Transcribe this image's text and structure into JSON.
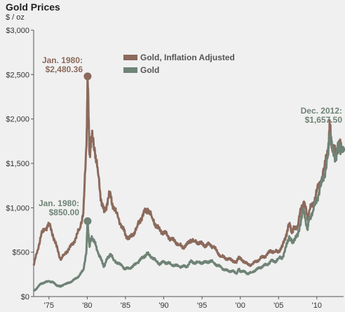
{
  "chart_data": {
    "type": "line",
    "title": "Gold Prices",
    "ylabel": "$ / oz",
    "xlim": [
      1973,
      2013.5
    ],
    "ylim": [
      0,
      3000
    ],
    "yticks": [
      0,
      500,
      1000,
      1500,
      2000,
      2500,
      3000
    ],
    "ytick_labels": [
      "$0",
      "$500",
      "$1,000",
      "$1,500",
      "$2,000",
      "$2,500",
      "$3,000"
    ],
    "xticks": [
      1975,
      1980,
      1985,
      1990,
      1995,
      2000,
      2005,
      2010
    ],
    "xtick_labels": [
      "'75",
      "'80",
      "'85",
      "'90",
      "'95",
      "'00",
      "'05",
      "'10"
    ],
    "legend_position": "top-center",
    "series": [
      {
        "name": "Gold, Inflation Adjusted",
        "color": "#8b6a5c",
        "points": [
          [
            1973.0,
            350
          ],
          [
            1973.5,
            520
          ],
          [
            1974.0,
            700
          ],
          [
            1974.5,
            760
          ],
          [
            1975.0,
            820
          ],
          [
            1975.5,
            700
          ],
          [
            1976.0,
            560
          ],
          [
            1976.5,
            420
          ],
          [
            1977.0,
            470
          ],
          [
            1977.5,
            530
          ],
          [
            1978.0,
            580
          ],
          [
            1978.5,
            660
          ],
          [
            1979.0,
            760
          ],
          [
            1979.5,
            950
          ],
          [
            1979.9,
            1700
          ],
          [
            1980.05,
            2480
          ],
          [
            1980.3,
            1600
          ],
          [
            1980.6,
            1800
          ],
          [
            1981.0,
            1650
          ],
          [
            1981.4,
            1400
          ],
          [
            1981.8,
            1100
          ],
          [
            1982.2,
            950
          ],
          [
            1982.6,
            1050
          ],
          [
            1983.0,
            1180
          ],
          [
            1983.4,
            1000
          ],
          [
            1984.0,
            900
          ],
          [
            1984.6,
            780
          ],
          [
            1985.0,
            700
          ],
          [
            1985.5,
            650
          ],
          [
            1986.0,
            700
          ],
          [
            1986.5,
            780
          ],
          [
            1987.0,
            880
          ],
          [
            1987.5,
            950
          ],
          [
            1987.9,
            990
          ],
          [
            1988.5,
            880
          ],
          [
            1989.0,
            800
          ],
          [
            1989.5,
            740
          ],
          [
            1990.0,
            730
          ],
          [
            1990.5,
            690
          ],
          [
            1991.0,
            640
          ],
          [
            1991.5,
            620
          ],
          [
            1992.0,
            580
          ],
          [
            1992.5,
            560
          ],
          [
            1993.0,
            580
          ],
          [
            1993.5,
            640
          ],
          [
            1994.0,
            620
          ],
          [
            1994.5,
            610
          ],
          [
            1995.0,
            590
          ],
          [
            1995.5,
            580
          ],
          [
            1996.0,
            590
          ],
          [
            1996.5,
            560
          ],
          [
            1997.0,
            500
          ],
          [
            1997.5,
            450
          ],
          [
            1998.0,
            440
          ],
          [
            1998.5,
            420
          ],
          [
            1999.0,
            410
          ],
          [
            1999.5,
            380
          ],
          [
            1999.8,
            450
          ],
          [
            2000.0,
            420
          ],
          [
            2000.5,
            400
          ],
          [
            2001.0,
            360
          ],
          [
            2001.5,
            360
          ],
          [
            2002.0,
            390
          ],
          [
            2002.5,
            420
          ],
          [
            2003.0,
            450
          ],
          [
            2003.5,
            470
          ],
          [
            2004.0,
            520
          ],
          [
            2004.5,
            500
          ],
          [
            2005.0,
            510
          ],
          [
            2005.5,
            560
          ],
          [
            2006.0,
            700
          ],
          [
            2006.4,
            820
          ],
          [
            2006.8,
            720
          ],
          [
            2007.0,
            760
          ],
          [
            2007.5,
            800
          ],
          [
            2008.0,
            1000
          ],
          [
            2008.3,
            1070
          ],
          [
            2008.8,
            880
          ],
          [
            2009.0,
            960
          ],
          [
            2009.5,
            1040
          ],
          [
            2010.0,
            1180
          ],
          [
            2010.5,
            1300
          ],
          [
            2011.0,
            1450
          ],
          [
            2011.5,
            1700
          ],
          [
            2011.7,
            1920
          ],
          [
            2012.0,
            1700
          ],
          [
            2012.5,
            1600
          ],
          [
            2012.9,
            1750
          ],
          [
            2013.2,
            1657.5
          ]
        ]
      },
      {
        "name": "Gold",
        "color": "#6f8376",
        "points": [
          [
            1973.0,
            65
          ],
          [
            1973.5,
            100
          ],
          [
            1974.0,
            150
          ],
          [
            1974.5,
            160
          ],
          [
            1975.0,
            175
          ],
          [
            1975.5,
            160
          ],
          [
            1976.0,
            130
          ],
          [
            1976.5,
            110
          ],
          [
            1977.0,
            140
          ],
          [
            1977.5,
            150
          ],
          [
            1978.0,
            175
          ],
          [
            1978.5,
            200
          ],
          [
            1979.0,
            240
          ],
          [
            1979.5,
            300
          ],
          [
            1979.9,
            520
          ],
          [
            1980.05,
            850
          ],
          [
            1980.3,
            560
          ],
          [
            1980.6,
            680
          ],
          [
            1981.0,
            600
          ],
          [
            1981.4,
            500
          ],
          [
            1981.8,
            420
          ],
          [
            1982.2,
            340
          ],
          [
            1982.6,
            420
          ],
          [
            1983.0,
            480
          ],
          [
            1983.4,
            420
          ],
          [
            1984.0,
            380
          ],
          [
            1984.6,
            340
          ],
          [
            1985.0,
            310
          ],
          [
            1985.5,
            320
          ],
          [
            1986.0,
            340
          ],
          [
            1986.5,
            380
          ],
          [
            1987.0,
            420
          ],
          [
            1987.5,
            460
          ],
          [
            1987.9,
            480
          ],
          [
            1988.5,
            440
          ],
          [
            1989.0,
            400
          ],
          [
            1989.5,
            370
          ],
          [
            1990.0,
            390
          ],
          [
            1990.5,
            380
          ],
          [
            1991.0,
            360
          ],
          [
            1991.5,
            350
          ],
          [
            1992.0,
            340
          ],
          [
            1992.5,
            340
          ],
          [
            1993.0,
            340
          ],
          [
            1993.5,
            390
          ],
          [
            1994.0,
            380
          ],
          [
            1994.5,
            385
          ],
          [
            1995.0,
            385
          ],
          [
            1995.5,
            385
          ],
          [
            1996.0,
            400
          ],
          [
            1996.5,
            385
          ],
          [
            1997.0,
            350
          ],
          [
            1997.5,
            330
          ],
          [
            1998.0,
            300
          ],
          [
            1998.5,
            290
          ],
          [
            1999.0,
            285
          ],
          [
            1999.5,
            260
          ],
          [
            1999.8,
            310
          ],
          [
            2000.0,
            290
          ],
          [
            2000.5,
            280
          ],
          [
            2001.0,
            260
          ],
          [
            2001.5,
            270
          ],
          [
            2002.0,
            300
          ],
          [
            2002.5,
            320
          ],
          [
            2003.0,
            350
          ],
          [
            2003.5,
            360
          ],
          [
            2004.0,
            400
          ],
          [
            2004.5,
            390
          ],
          [
            2005.0,
            430
          ],
          [
            2005.5,
            440
          ],
          [
            2006.0,
            560
          ],
          [
            2006.4,
            680
          ],
          [
            2006.8,
            600
          ],
          [
            2007.0,
            640
          ],
          [
            2007.5,
            680
          ],
          [
            2008.0,
            900
          ],
          [
            2008.3,
            980
          ],
          [
            2008.8,
            750
          ],
          [
            2009.0,
            880
          ],
          [
            2009.5,
            960
          ],
          [
            2010.0,
            1100
          ],
          [
            2010.5,
            1240
          ],
          [
            2011.0,
            1380
          ],
          [
            2011.5,
            1600
          ],
          [
            2011.7,
            1850
          ],
          [
            2012.0,
            1650
          ],
          [
            2012.5,
            1580
          ],
          [
            2012.9,
            1720
          ],
          [
            2013.2,
            1657.5
          ]
        ]
      }
    ],
    "annotations": [
      {
        "id": "peak-1980-adjusted",
        "lines": [
          "Jan. 1980:",
          "$2,480.36"
        ],
        "x": 1980.05,
        "y": 2480.36,
        "series": 0,
        "color": "#8b6a5c"
      },
      {
        "id": "peak-1980-nominal",
        "lines": [
          "Jan. 1980:",
          "$850.00"
        ],
        "x": 1980.05,
        "y": 850,
        "series": 1,
        "color": "#6f8376"
      },
      {
        "id": "dec-2012",
        "lines": [
          "Dec. 2012:",
          "$1,657.50"
        ],
        "x": 2013.2,
        "y": 1657.5,
        "series": 1,
        "color": "#6f8376"
      }
    ]
  }
}
